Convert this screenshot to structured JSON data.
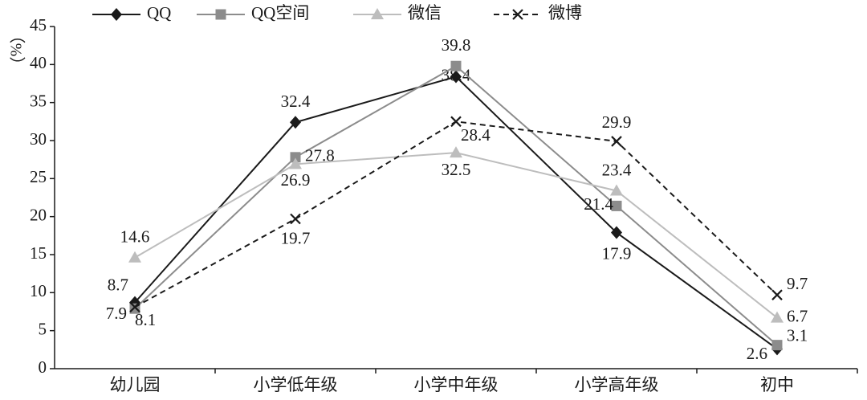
{
  "chart_data": {
    "type": "line",
    "y_label": "（%）",
    "categories": [
      "幼儿园",
      "小学低年级",
      "小学中年级",
      "小学高年级",
      "初中"
    ],
    "ylim": [
      0,
      45
    ],
    "yticks": [
      0,
      5,
      10,
      15,
      20,
      25,
      30,
      35,
      40,
      45
    ],
    "series": [
      {
        "name": "QQ",
        "color": "#1a1a1a",
        "marker": "diamond",
        "dashed": false,
        "values": [
          8.7,
          32.4,
          38.4,
          17.9,
          2.6
        ]
      },
      {
        "name": "QQ空间",
        "color": "#8c8c8c",
        "marker": "square",
        "dashed": false,
        "values": [
          7.9,
          27.8,
          39.8,
          21.4,
          3.1
        ]
      },
      {
        "name": "微信",
        "color": "#bdbdbd",
        "marker": "triangle",
        "dashed": false,
        "values": [
          14.6,
          26.9,
          28.4,
          23.4,
          6.7
        ]
      },
      {
        "name": "微博",
        "color": "#1a1a1a",
        "marker": "x",
        "dashed": true,
        "values": [
          8.1,
          19.7,
          32.5,
          29.9,
          9.7
        ]
      }
    ]
  }
}
